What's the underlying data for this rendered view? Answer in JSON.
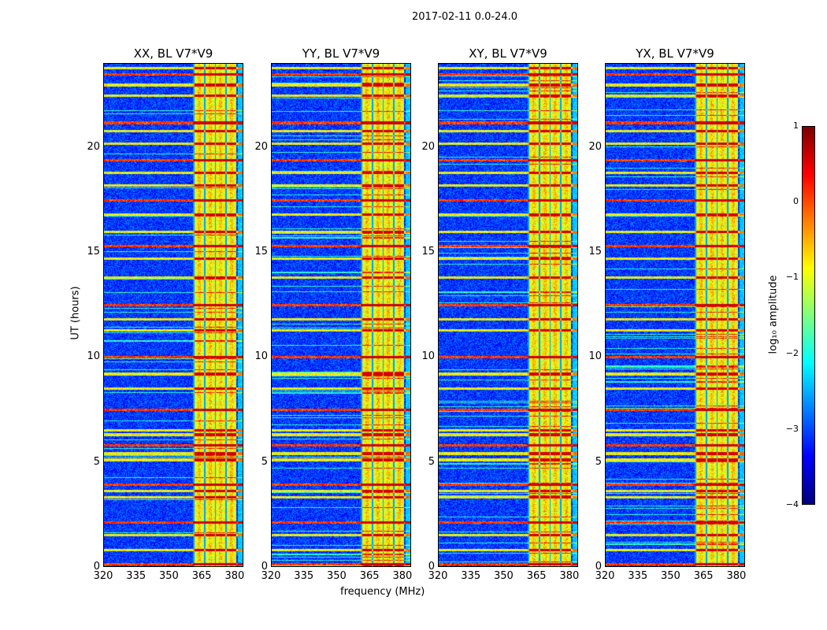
{
  "chart_data": {
    "type": "heatmap",
    "title": "2017-02-11 0.0-24.0",
    "xlabel": "frequency (MHz)",
    "ylabel": "UT (hours)",
    "xlim": [
      320,
      384
    ],
    "ylim": [
      0,
      24
    ],
    "xticks": [
      "320",
      "335",
      "350",
      "365",
      "380"
    ],
    "xtick_values": [
      320,
      335,
      350,
      365,
      380
    ],
    "yticks": [
      "0",
      "5",
      "10",
      "15",
      "20"
    ],
    "ytick_values": [
      0,
      5,
      10,
      15,
      20
    ],
    "panels": [
      {
        "title": "XX, BL V7*V9"
      },
      {
        "title": "YY, BL V7*V9"
      },
      {
        "title": "XY, BL V7*V9"
      },
      {
        "title": "YX, BL V7*V9"
      }
    ],
    "rfi_band_mhz": [
      361,
      381
    ],
    "rfi_line_hours": [
      0.1,
      0.8,
      1.5,
      2.1,
      3.3,
      3.6,
      3.9,
      5.1,
      5.4,
      5.8,
      6.3,
      6.5,
      7.5,
      8.5,
      9.2,
      10.0,
      11.3,
      11.8,
      12.5,
      13.8,
      14.7,
      15.3,
      16.0,
      16.8,
      17.5,
      18.2,
      18.8,
      19.4,
      20.2,
      20.8,
      21.2,
      22.5,
      23.0,
      23.5,
      23.8
    ],
    "colorbar": {
      "label": "log₁₀ amplitude",
      "colormap": "jet",
      "range": [
        -4,
        1
      ],
      "ticks": [
        "1",
        "0",
        "−1",
        "−2",
        "−3",
        "−4"
      ],
      "tick_values": [
        1,
        0,
        -1,
        -2,
        -3,
        -4
      ]
    }
  }
}
